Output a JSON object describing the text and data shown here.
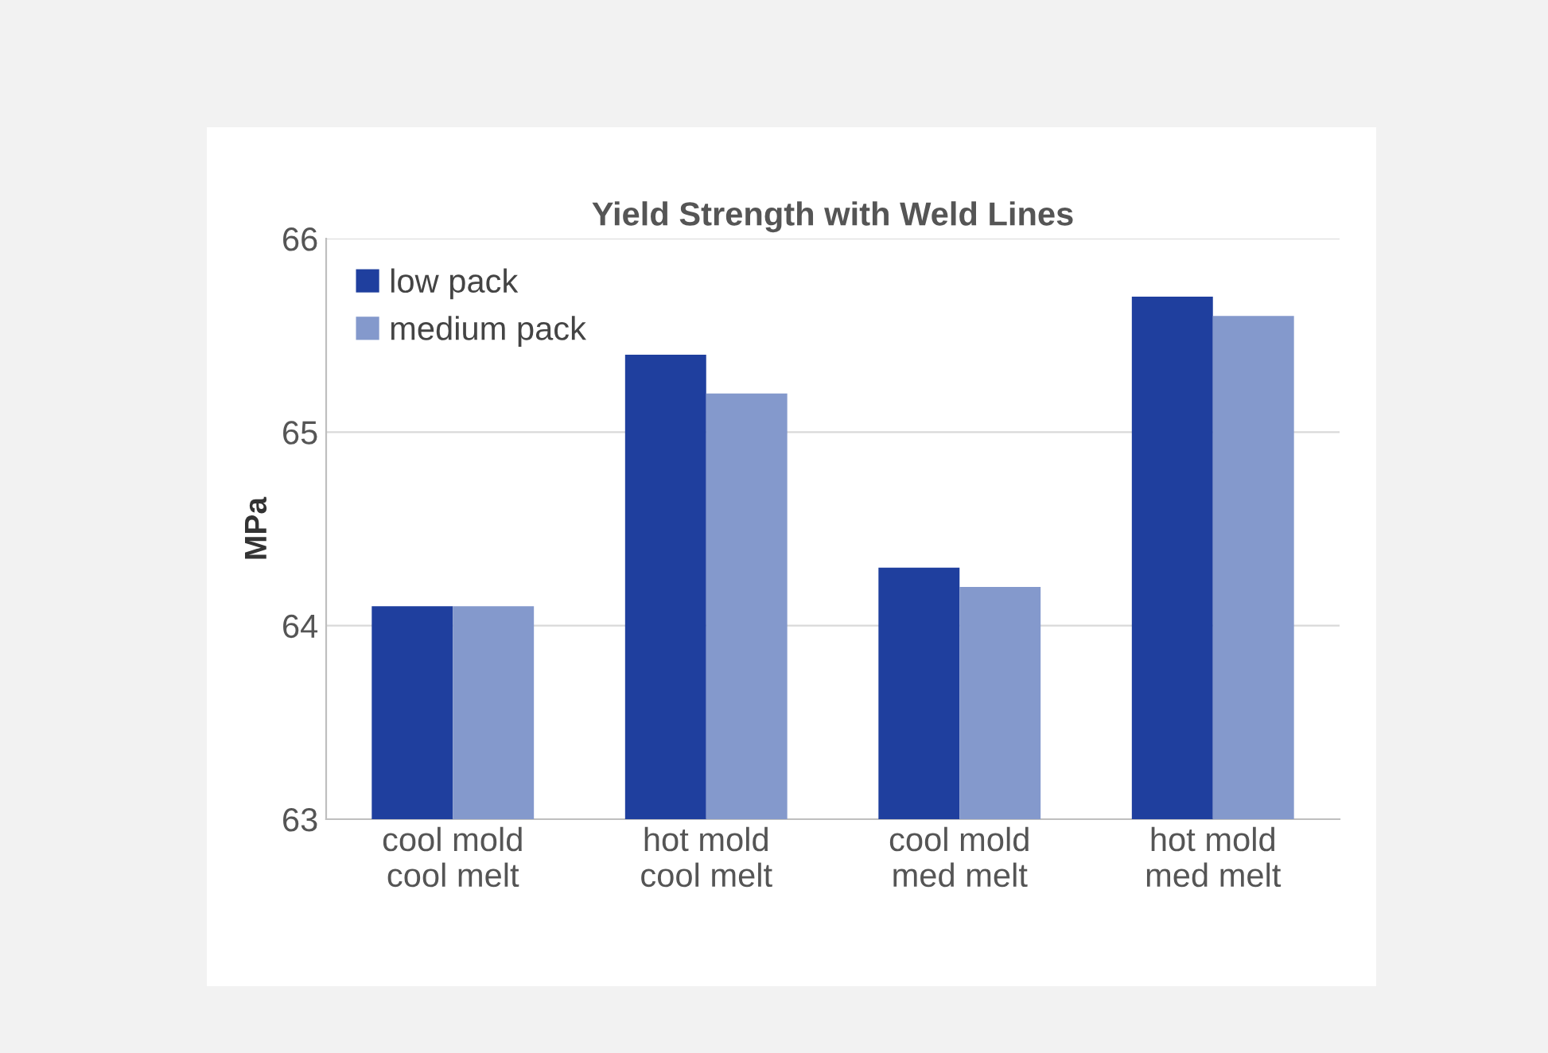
{
  "chart_data": {
    "type": "bar",
    "title": "Yield Strength with Weld Lines",
    "ylabel": "MPa",
    "categories": [
      "cool mold\ncool melt",
      "hot mold\ncool melt",
      "cool mold\nmed melt",
      "hot mold\nmed melt"
    ],
    "series": [
      {
        "name": "low pack",
        "color": "#1f3f9e",
        "values": [
          64.1,
          65.4,
          64.3,
          65.7
        ]
      },
      {
        "name": "medium pack",
        "color": "#8499cc",
        "values": [
          64.1,
          65.2,
          64.2,
          65.6
        ]
      }
    ],
    "ylim": [
      63,
      66
    ],
    "yticks": [
      63,
      64,
      65,
      66
    ],
    "grid": "y",
    "legend": "top left"
  }
}
